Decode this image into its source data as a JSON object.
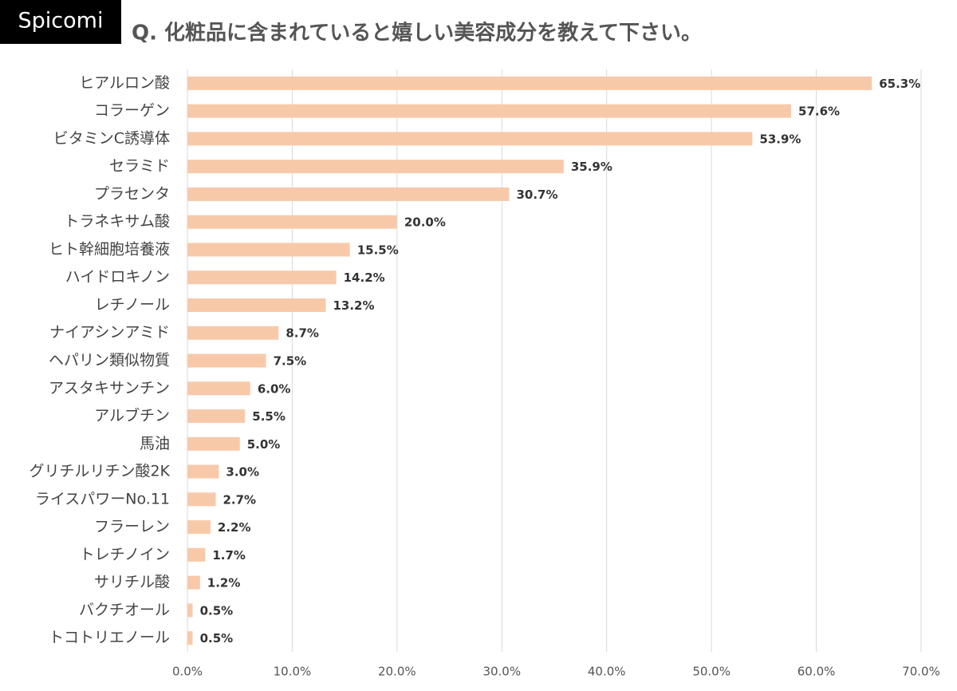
{
  "chart_data": {
    "type": "bar",
    "orientation": "horizontal",
    "brand": "Spicomi",
    "title": "Q. 化粧品に含まれていると嬉しい美容成分を教えて下さい。",
    "categories": [
      "ヒアルロン酸",
      "コラーゲン",
      "ビタミンC誘導体",
      "セラミド",
      "プラセンタ",
      "トラネキサム酸",
      "ヒト幹細胞培養液",
      "ハイドロキノン",
      "レチノール",
      "ナイアシンアミド",
      "ヘパリン類似物質",
      "アスタキサンチン",
      "アルブチン",
      "馬油",
      "グリチルリチン酸2K",
      "ライスパワーNo.11",
      "フラーレン",
      "トレチノイン",
      "サリチル酸",
      "バクチオール",
      "トコトリエノール"
    ],
    "values": [
      65.3,
      57.6,
      53.9,
      35.9,
      30.7,
      20.0,
      15.5,
      14.2,
      13.2,
      8.7,
      7.5,
      6.0,
      5.5,
      5.0,
      3.0,
      2.7,
      2.2,
      1.7,
      1.2,
      0.5,
      0.5
    ],
    "value_labels": [
      "65.3%",
      "57.6%",
      "53.9%",
      "35.9%",
      "30.7%",
      "20.0%",
      "15.5%",
      "14.2%",
      "13.2%",
      "8.7%",
      "7.5%",
      "6.0%",
      "5.5%",
      "5.0%",
      "3.0%",
      "2.7%",
      "2.2%",
      "1.7%",
      "1.2%",
      "0.5%",
      "0.5%"
    ],
    "color": "#f8c9a9",
    "xlim": [
      0,
      70
    ],
    "xticks": [
      {
        "value": 0,
        "label": "0.0%"
      },
      {
        "value": 10,
        "label": "10.0%"
      },
      {
        "value": 20,
        "label": "20.0%"
      },
      {
        "value": 30,
        "label": "30.0%"
      },
      {
        "value": 40,
        "label": "40.0%"
      },
      {
        "value": 50,
        "label": "50.0%"
      },
      {
        "value": 60,
        "label": "60.0%"
      },
      {
        "value": 70,
        "label": "70.0%"
      }
    ],
    "grid": true
  }
}
